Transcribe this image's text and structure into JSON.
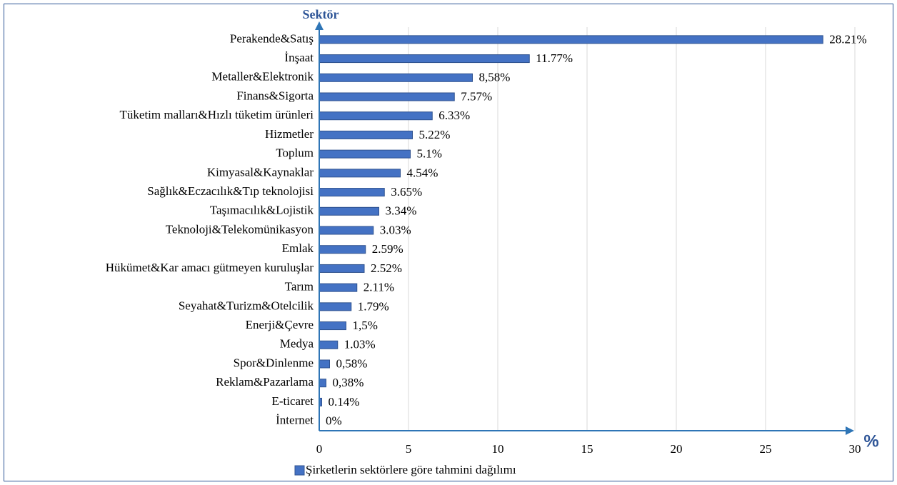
{
  "chart_data": {
    "type": "bar",
    "orientation": "horizontal",
    "ylabel": "Sektör",
    "xlabel": "%",
    "categories": [
      "Perakende&Satış",
      "İnşaat",
      "Metaller&Elektronik",
      "Finans&Sigorta",
      "Tüketim malları&Hızlı tüketim ürünleri",
      "Hizmetler",
      "Toplum",
      "Kimyasal&Kaynaklar",
      "Sağlık&Eczacılık&Tıp teknolojisi",
      "Taşımacılık&Lojistik",
      "Teknoloji&Telekomünikasyon",
      "Emlak",
      "Hükümet&Kar amacı gütmeyen kuruluşlar",
      "Tarım",
      "Seyahat&Turizm&Otelcilik",
      "Enerji&Çevre",
      "Medya",
      "Spor&Dinlenme",
      "Reklam&Pazarlama",
      "E-ticaret",
      "İnternet"
    ],
    "series": [
      {
        "name": "Şirketlerin sektörlere göre tahmini dağılımı",
        "color": "#4472c4",
        "values": [
          28.21,
          11.77,
          8.58,
          7.57,
          6.33,
          5.22,
          5.1,
          4.54,
          3.65,
          3.34,
          3.03,
          2.59,
          2.52,
          2.11,
          1.79,
          1.5,
          1.03,
          0.58,
          0.38,
          0.14,
          0
        ],
        "value_labels": [
          "28.21%",
          "11.77%",
          "8,58%",
          "7.57%",
          "6.33%",
          "5.22%",
          "5.1%",
          "4.54%",
          "3.65%",
          "3.34%",
          "3.03%",
          "2.59%",
          "2.52%",
          "2.11%",
          "1.79%",
          "1,5%",
          "1.03%",
          "0,58%",
          "0,38%",
          "0.14%",
          "0%"
        ]
      }
    ],
    "xlim": [
      0,
      30
    ],
    "xticks": [
      0,
      5,
      10,
      15,
      20,
      25,
      30
    ],
    "grid": true,
    "legend": "bottom"
  }
}
